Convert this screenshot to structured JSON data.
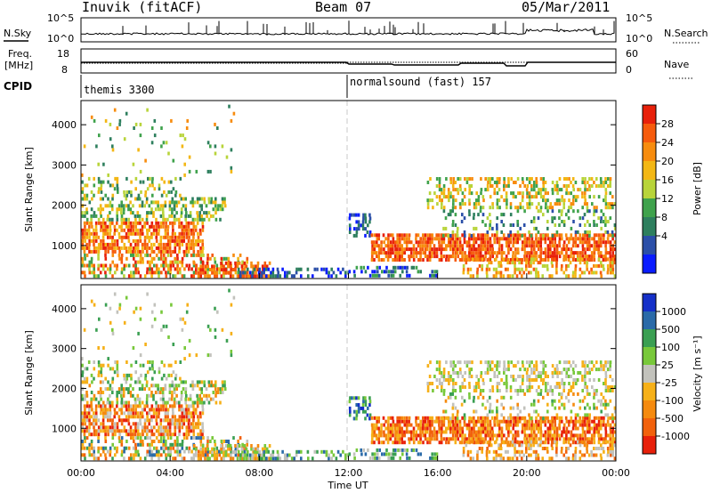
{
  "header": {
    "title": "Inuvik (fitACF)",
    "beam": "Beam 07",
    "date": "05/Mar/2011"
  },
  "colors": {
    "power": [
      "#0a1cff",
      "#2b4fa8",
      "#2e7f5e",
      "#3fa24c",
      "#b8d43a",
      "#f3b714",
      "#f78c0e",
      "#f65b0c",
      "#e8200a"
    ],
    "velocity": [
      "#e8200a",
      "#f2610c",
      "#f58a0e",
      "#f6b018",
      "#c2c2bc",
      "#78c83a",
      "#3a9f52",
      "#2a6aa8",
      "#1530c8"
    ]
  },
  "chart_data": [
    {
      "type": "line",
      "name": "nsky-nsearch",
      "left_label": "N.Sky",
      "right_label": "N.Search",
      "left_ticks": [
        "10^5",
        "10^0"
      ],
      "right_ticks": [
        "10^5",
        "10^0"
      ]
    },
    {
      "type": "line",
      "name": "freq-nave",
      "left_label": "Freq.",
      "left_units": "[MHz]",
      "right_label": "Nave",
      "left_ticks": [
        "18",
        "8"
      ],
      "right_ticks": [
        "60",
        "0"
      ]
    },
    {
      "type": "table",
      "name": "cpid",
      "label": "CPID",
      "segments": [
        {
          "label": "themis 3300",
          "start_hour": 0
        },
        {
          "label": "normalsound (fast) 157",
          "start_hour": 12
        }
      ]
    },
    {
      "type": "heatmap",
      "name": "power",
      "ylabel": "Slant Range [km]",
      "yticks": [
        1000,
        2000,
        3000,
        4000
      ],
      "ylim": [
        180,
        4600
      ],
      "xlim": [
        0,
        24
      ],
      "colorbar_label": "Power [dB]",
      "colorbar_ticks": [
        "28",
        "24",
        "20",
        "16",
        "12",
        "8",
        "4"
      ]
    },
    {
      "type": "heatmap",
      "name": "velocity",
      "ylabel": "Slant Range [km]",
      "yticks": [
        1000,
        2000,
        3000,
        4000
      ],
      "ylim": [
        180,
        4600
      ],
      "xlim": [
        0,
        24
      ],
      "xticks": [
        "00:00",
        "04:00",
        "08:00",
        "12:00",
        "16:00",
        "20:00",
        "00:00"
      ],
      "xlabel": "Time UT",
      "colorbar_label": "Velocity [m s⁻¹]",
      "colorbar_ticks": [
        "1000",
        "500",
        "100",
        "25",
        "-25",
        "-100",
        "-500",
        "-1000"
      ]
    }
  ]
}
